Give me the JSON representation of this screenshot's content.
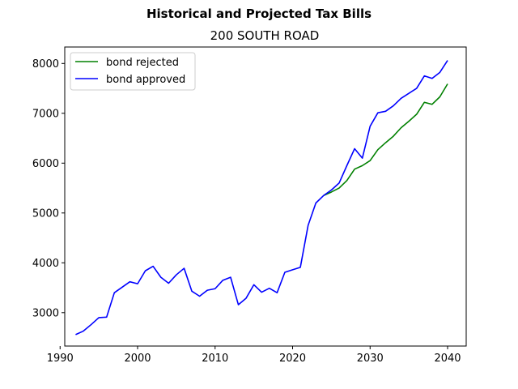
{
  "chart_data": {
    "type": "line",
    "title": "Historical and Projected Tax Bills",
    "subtitle": "200 SOUTH ROAD",
    "xlabel": "",
    "ylabel": "",
    "xlim": [
      1990.6,
      2042.4
    ],
    "ylim": [
      2330,
      8330
    ],
    "xticks": [
      1990,
      2000,
      2010,
      2020,
      2030,
      2040
    ],
    "yticks": [
      3000,
      4000,
      5000,
      6000,
      7000,
      8000
    ],
    "grid": false,
    "legend_position": "top-left",
    "series": [
      {
        "name": "bond rejected",
        "color": "#008000",
        "x": [
          2024,
          2025,
          2026,
          2027,
          2028,
          2029,
          2030,
          2031,
          2032,
          2033,
          2034,
          2035,
          2036,
          2037,
          2038,
          2039,
          2040
        ],
        "y": [
          5350,
          5420,
          5500,
          5650,
          5880,
          5950,
          6050,
          6270,
          6410,
          6540,
          6710,
          6840,
          6980,
          7220,
          7180,
          7330,
          7590
        ]
      },
      {
        "name": "bond approved",
        "color": "#0000ff",
        "x": [
          1992,
          1993,
          1994,
          1995,
          1996,
          1997,
          1998,
          1999,
          2000,
          2001,
          2002,
          2003,
          2004,
          2005,
          2006,
          2007,
          2008,
          2009,
          2010,
          2011,
          2012,
          2013,
          2014,
          2015,
          2016,
          2017,
          2018,
          2019,
          2020,
          2021,
          2022,
          2023,
          2024,
          2025,
          2026,
          2027,
          2028,
          2029,
          2030,
          2031,
          2032,
          2033,
          2034,
          2035,
          2036,
          2037,
          2038,
          2039,
          2040
        ],
        "y": [
          2560,
          2630,
          2760,
          2900,
          2910,
          3400,
          3510,
          3620,
          3580,
          3840,
          3930,
          3710,
          3590,
          3760,
          3890,
          3430,
          3330,
          3450,
          3480,
          3650,
          3710,
          3160,
          3290,
          3560,
          3410,
          3490,
          3400,
          3810,
          3860,
          3910,
          4750,
          5200,
          5350,
          5460,
          5600,
          5950,
          6290,
          6100,
          6740,
          7010,
          7040,
          7150,
          7300,
          7400,
          7500,
          7750,
          7700,
          7820,
          8060
        ]
      }
    ]
  }
}
